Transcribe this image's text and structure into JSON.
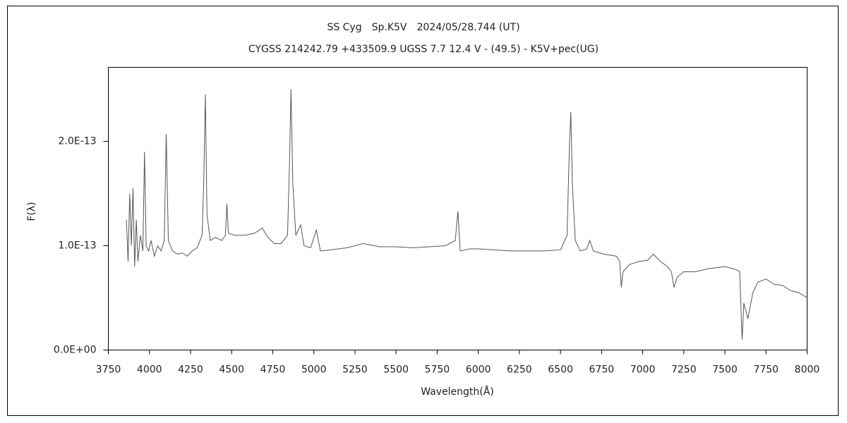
{
  "chart_data": {
    "type": "line",
    "title": "SS Cyg　Sp.K5V　2024/05/28.744 (UT)",
    "subtitle": "CYGSS 214242.79 +433509.9 UGSS 7.7 12.4 V - (49.5) - K5V+pec(UG)",
    "x_label": "Wavelength(Å)",
    "y_label": "F(λ)",
    "color": "#555555",
    "grid": false,
    "xlim": [
      3750,
      8000
    ],
    "xticks": [
      3750,
      4000,
      4250,
      4500,
      4750,
      5000,
      5250,
      5500,
      5750,
      6000,
      6250,
      6500,
      6750,
      7000,
      7250,
      7500,
      7750,
      8000
    ],
    "ylim": [
      0,
      2.71e-13
    ],
    "yticks": [
      {
        "value": 0,
        "label": "0.0E+00"
      },
      {
        "value": 1e-13,
        "label": "1.0E-13"
      },
      {
        "value": 2e-13,
        "label": "2.0E-13"
      }
    ],
    "x": [
      3860,
      3870,
      3880,
      3890,
      3900,
      3910,
      3920,
      3930,
      3945,
      3960,
      3970,
      3980,
      3995,
      4010,
      4030,
      4050,
      4070,
      4090,
      4102,
      4115,
      4140,
      4170,
      4200,
      4230,
      4260,
      4290,
      4320,
      4330,
      4340,
      4350,
      4370,
      4400,
      4440,
      4462,
      4471,
      4480,
      4520,
      4580,
      4640,
      4686,
      4720,
      4760,
      4800,
      4840,
      4852,
      4861,
      4872,
      4890,
      4920,
      4940,
      4980,
      5015,
      5040,
      5100,
      5200,
      5300,
      5400,
      5500,
      5600,
      5700,
      5800,
      5860,
      5876,
      5890,
      5950,
      6000,
      6100,
      6200,
      6300,
      6400,
      6500,
      6540,
      6555,
      6563,
      6572,
      6590,
      6620,
      6660,
      6678,
      6700,
      6760,
      6840,
      6860,
      6870,
      6880,
      6920,
      6980,
      7030,
      7065,
      7100,
      7150,
      7175,
      7190,
      7210,
      7250,
      7320,
      7400,
      7500,
      7570,
      7590,
      7600,
      7605,
      7615,
      7640,
      7670,
      7700,
      7750,
      7800,
      7850,
      7900,
      7950,
      8000
    ],
    "values": [
      1.25e-13,
      8.5e-14,
      1.5e-13,
      1e-13,
      1.55e-13,
      8e-14,
      1.25e-13,
      8.5e-14,
      1.1e-13,
      9.5e-14,
      1.9e-13,
      1e-13,
      9.5e-14,
      1.05e-13,
      9e-14,
      1e-13,
      9.5e-14,
      1.05e-13,
      2.07e-13,
      1.05e-13,
      9.5e-14,
      9.2e-14,
      9.3e-14,
      9e-14,
      9.5e-14,
      9.8e-14,
      1.1e-13,
      1.6e-13,
      2.45e-13,
      1.3e-13,
      1.05e-13,
      1.08e-13,
      1.05e-13,
      1.1e-13,
      1.4e-13,
      1.12e-13,
      1.1e-13,
      1.1e-13,
      1.12e-13,
      1.17e-13,
      1.08e-13,
      1.02e-13,
      1.02e-13,
      1.1e-13,
      1.8e-13,
      2.5e-13,
      1.6e-13,
      1.1e-13,
      1.2e-13,
      1e-13,
      9.8e-14,
      1.15e-13,
      9.5e-14,
      9.6e-14,
      9.8e-14,
      1.02e-13,
      9.9e-14,
      9.9e-14,
      9.8e-14,
      9.9e-14,
      1e-13,
      1.05e-13,
      1.33e-13,
      9.5e-14,
      9.7e-14,
      9.7e-14,
      9.6e-14,
      9.5e-14,
      9.5e-14,
      9.5e-14,
      9.6e-14,
      1.1e-13,
      2e-13,
      2.28e-13,
      1.6e-13,
      1.05e-13,
      9.5e-14,
      9.7e-14,
      1.05e-13,
      9.5e-14,
      9.2e-14,
      9e-14,
      8.5e-14,
      6e-14,
      7.5e-14,
      8.2e-14,
      8.5e-14,
      8.6e-14,
      9.2e-14,
      8.6e-14,
      8e-14,
      7.5e-14,
      6e-14,
      7e-14,
      7.5e-14,
      7.5e-14,
      7.8e-14,
      8e-14,
      7.7e-14,
      7.5e-14,
      3e-14,
      1e-14,
      4.5e-14,
      3e-14,
      5.5e-14,
      6.5e-14,
      6.8e-14,
      6.3e-14,
      6.2e-14,
      5.7e-14,
      5.5e-14,
      5e-14
    ]
  }
}
